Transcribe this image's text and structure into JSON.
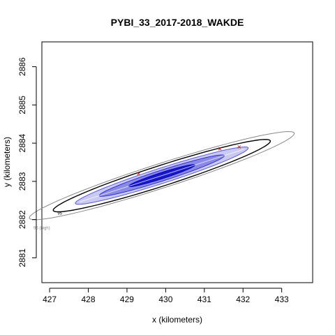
{
  "chart_data": {
    "type": "contour",
    "title": "PYBI_33_2017-2018_WAKDE",
    "xlabel": "x (kilometers)",
    "ylabel": "y (kilometers)",
    "xlim": [
      426.8,
      433.8
    ],
    "ylim": [
      2880.35,
      2886.65
    ],
    "x_ticks": [
      427,
      428,
      429,
      430,
      431,
      432,
      433
    ],
    "y_ticks": [
      2881,
      2882,
      2883,
      2884,
      2885,
      2886
    ],
    "grid": false,
    "legend": "none",
    "center": [
      429.9,
      2883.15
    ],
    "angle_deg": 18,
    "contours": [
      {
        "label": "95 (high)",
        "semi_major_km": 3.6,
        "semi_minor_km": 0.32,
        "color": "#888888",
        "fill": null
      },
      {
        "label": "95",
        "semi_major_km": 2.95,
        "semi_minor_km": 0.27,
        "color": "#000000",
        "fill": null
      },
      {
        "label": "",
        "semi_major_km": 2.35,
        "semi_minor_km": 0.2,
        "color": "#5a5ad8",
        "fill": "#c9c9f2"
      },
      {
        "label": "",
        "semi_major_km": 1.7,
        "semi_minor_km": 0.14,
        "color": "#3232c8",
        "fill": "#8a8ae6"
      },
      {
        "label": "",
        "semi_major_km": 0.9,
        "semi_minor_km": 0.08,
        "color": "#0000b8",
        "fill": "#1818c8"
      }
    ],
    "points": [
      {
        "x": 429.3,
        "y": 2883.2
      },
      {
        "x": 431.4,
        "y": 2883.85
      },
      {
        "x": 431.9,
        "y": 2883.9
      }
    ]
  }
}
